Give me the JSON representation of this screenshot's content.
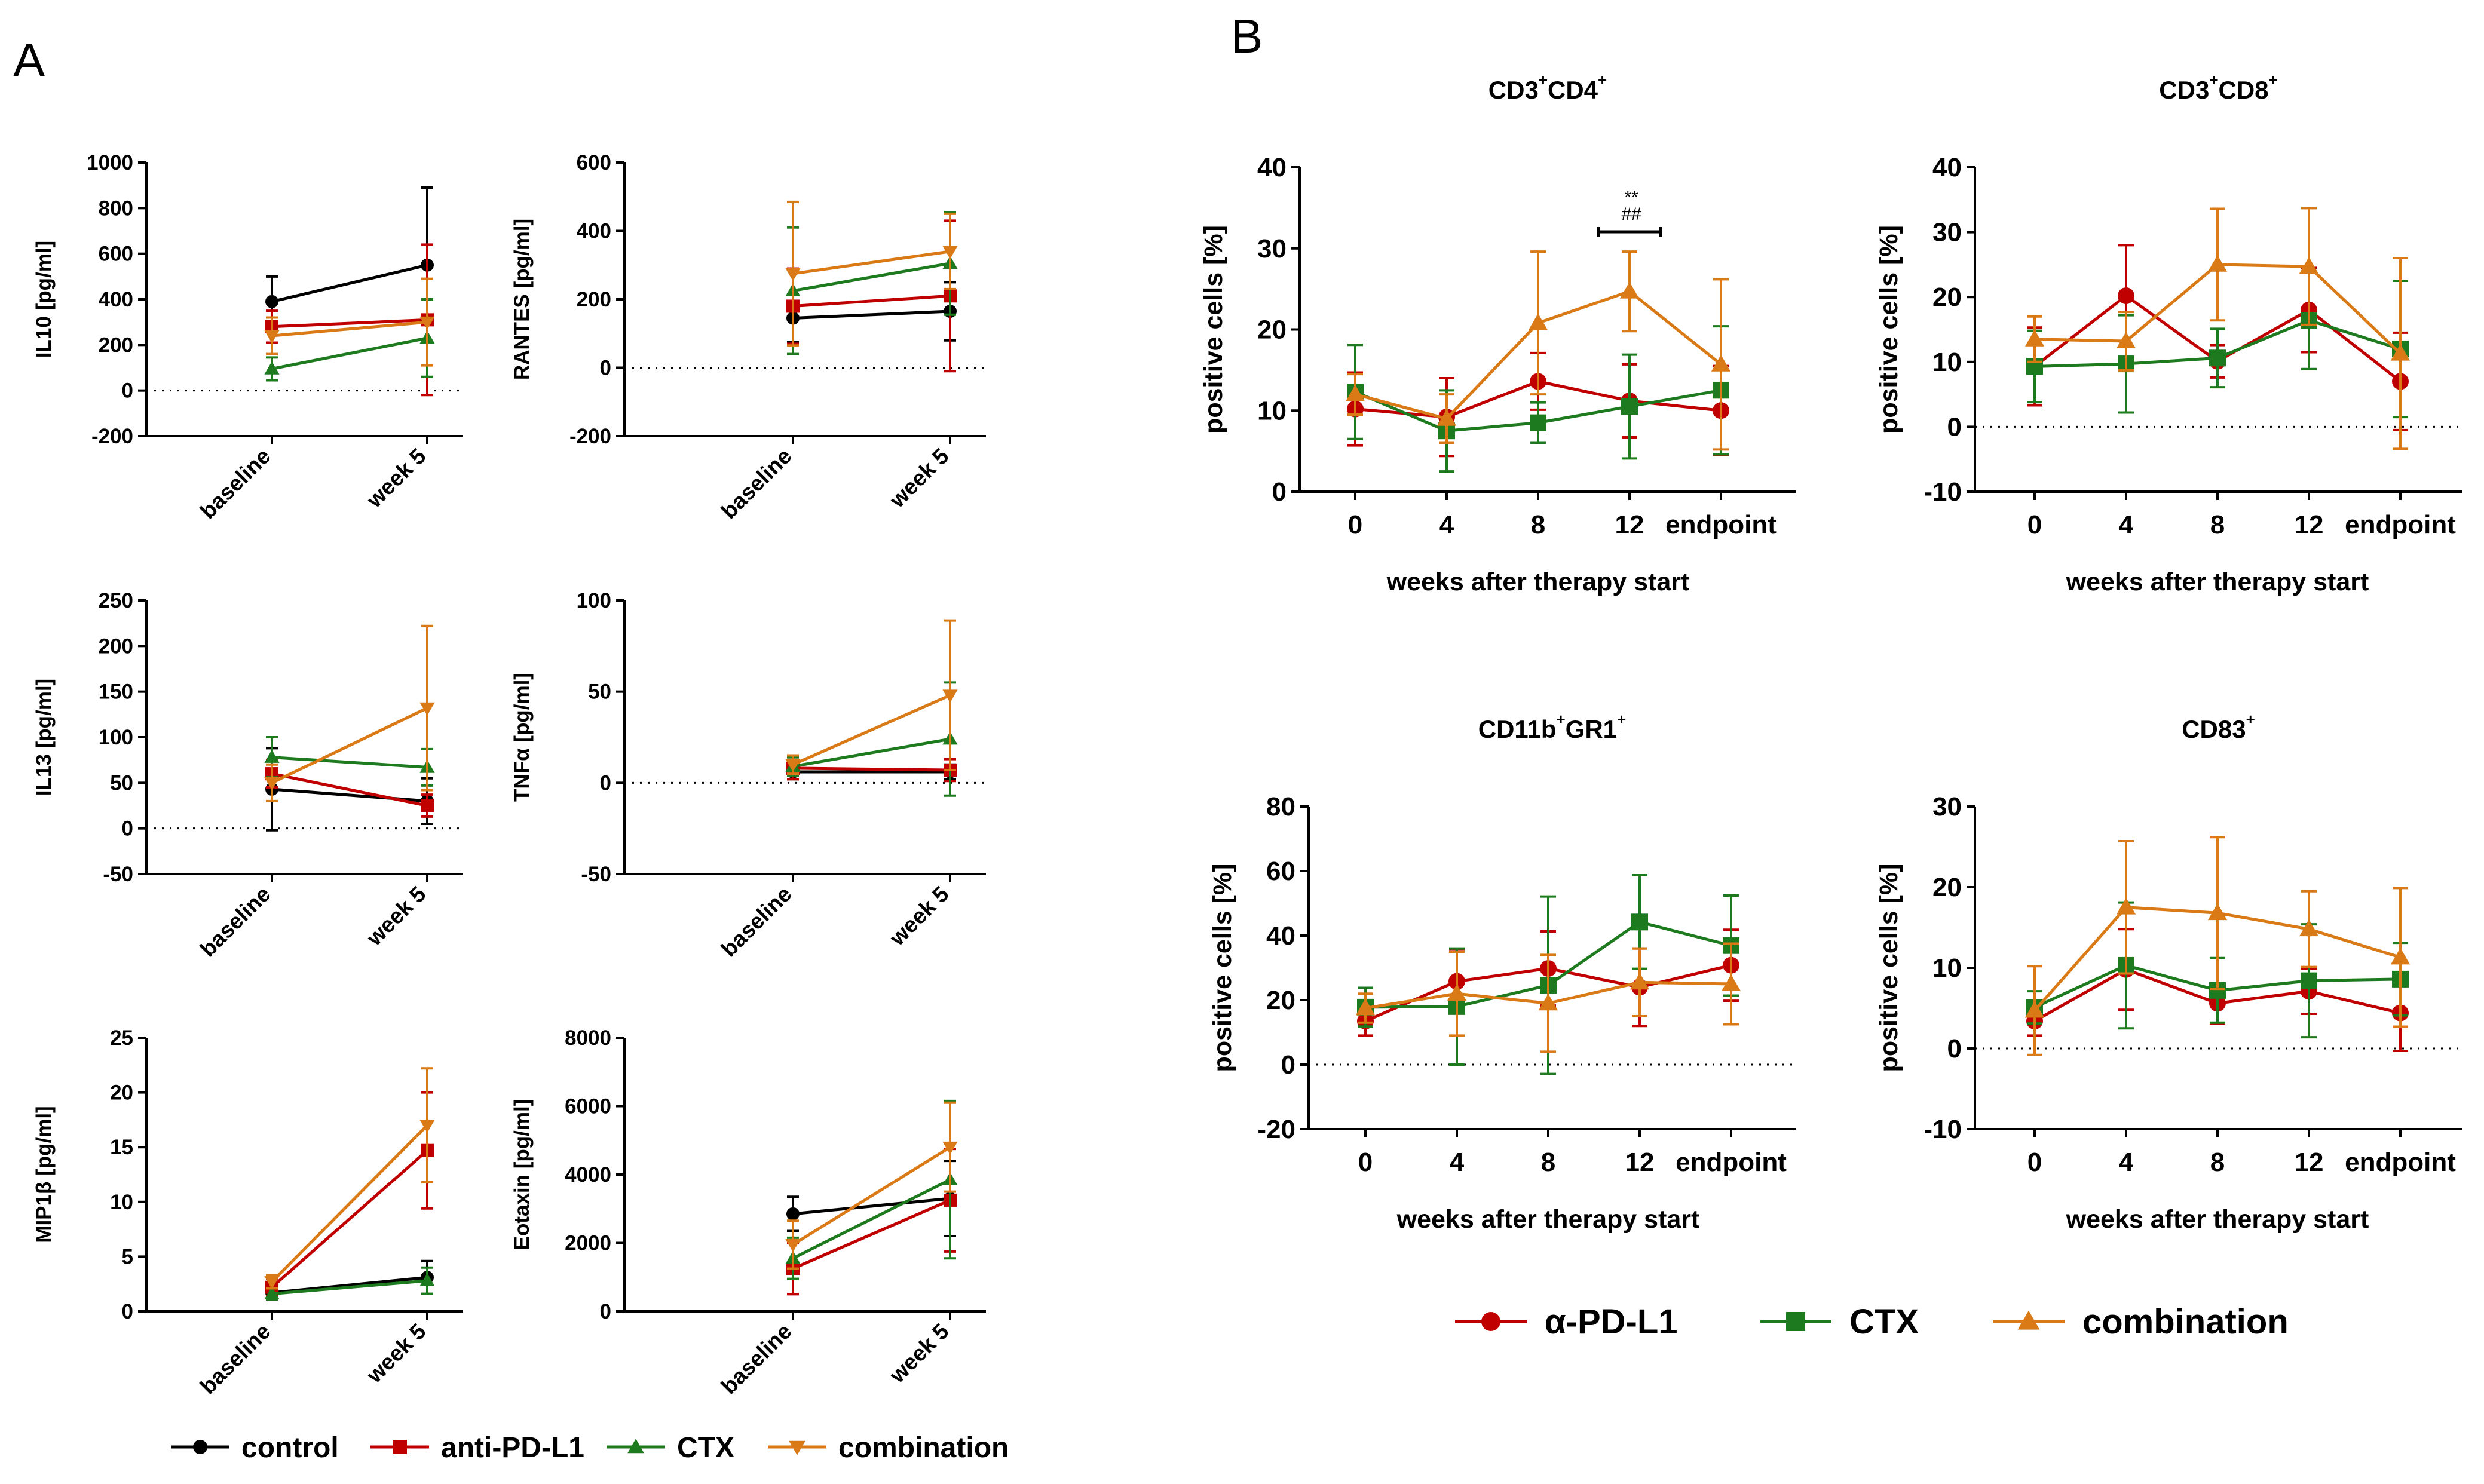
{
  "sections": {
    "a": "A",
    "b": "B"
  },
  "colors": {
    "control": "#000000",
    "pdl1": "#c00000",
    "ctx": "#1e7a1e",
    "comb": "#d97a17"
  },
  "legend_a": [
    {
      "key": "control",
      "label": "control",
      "marker": "circle"
    },
    {
      "key": "pdl1",
      "label": "anti-PD-L1",
      "marker": "square"
    },
    {
      "key": "ctx",
      "label": "CTX",
      "marker": "triangle-up"
    },
    {
      "key": "comb",
      "label": "combination",
      "marker": "triangle-down"
    }
  ],
  "legend_b": [
    {
      "key": "pdl1",
      "label": "α-PD-L1",
      "marker": "circle"
    },
    {
      "key": "ctx",
      "label": "CTX",
      "marker": "square"
    },
    {
      "key": "comb",
      "label": "combination",
      "marker": "triangle-up"
    }
  ],
  "chart_data": [
    {
      "id": "a1",
      "type": "line",
      "ylabel": "IL10 [pg/ml]",
      "categories": [
        "baseline",
        "week 5"
      ],
      "ylim": [
        -200,
        1000
      ],
      "yticks": [
        -200,
        0,
        200,
        400,
        600,
        800,
        1000
      ],
      "ytick_labels": [
        "-200",
        "0",
        "200",
        "400",
        "600",
        "800",
        "1000"
      ],
      "series": [
        {
          "key": "control",
          "name": "control",
          "values": [
            390,
            550
          ],
          "err": [
            110,
            340
          ]
        },
        {
          "key": "pdl1",
          "name": "anti-PD-L1",
          "values": [
            280,
            310
          ],
          "err": [
            70,
            330
          ]
        },
        {
          "key": "ctx",
          "name": "CTX",
          "values": [
            95,
            230
          ],
          "err": [
            50,
            170
          ]
        },
        {
          "key": "comb",
          "name": "combination",
          "values": [
            240,
            300
          ],
          "err": [
            80,
            190
          ]
        }
      ]
    },
    {
      "id": "a2",
      "type": "line",
      "ylabel": "RANTES [pg/ml]",
      "categories": [
        "baseline",
        "week 5"
      ],
      "ylim": [
        -200,
        600
      ],
      "yticks": [
        -200,
        0,
        200,
        400,
        600
      ],
      "ytick_labels": [
        "-200",
        "0",
        "200",
        "400",
        "600"
      ],
      "series": [
        {
          "key": "control",
          "name": "control",
          "values": [
            145,
            165
          ],
          "err": [
            70,
            85
          ]
        },
        {
          "key": "pdl1",
          "name": "anti-PD-L1",
          "values": [
            180,
            210
          ],
          "err": [
            110,
            220
          ]
        },
        {
          "key": "ctx",
          "name": "CTX",
          "values": [
            225,
            305
          ],
          "err": [
            185,
            150
          ]
        },
        {
          "key": "comb",
          "name": "combination",
          "values": [
            275,
            340
          ],
          "err": [
            210,
            110
          ]
        }
      ]
    },
    {
      "id": "a3",
      "type": "line",
      "ylabel": "IL13 [pg/ml]",
      "categories": [
        "baseline",
        "week 5"
      ],
      "ylim": [
        -50,
        250
      ],
      "yticks": [
        -50,
        0,
        50,
        100,
        150,
        200,
        250
      ],
      "ytick_labels": [
        "-50",
        "0",
        "50",
        "100",
        "150",
        "200",
        "250"
      ],
      "series": [
        {
          "key": "control",
          "name": "control",
          "values": [
            43,
            30
          ],
          "err": [
            45,
            25
          ]
        },
        {
          "key": "pdl1",
          "name": "anti-PD-L1",
          "values": [
            60,
            25
          ],
          "err": [
            15,
            12
          ]
        },
        {
          "key": "ctx",
          "name": "CTX",
          "values": [
            78,
            67
          ],
          "err": [
            22,
            20
          ]
        },
        {
          "key": "comb",
          "name": "combination",
          "values": [
            50,
            132
          ],
          "err": [
            20,
            90
          ]
        }
      ]
    },
    {
      "id": "a4",
      "type": "line",
      "ylabel": "TNFα [pg/ml]",
      "categories": [
        "baseline",
        "week 5"
      ],
      "ylim": [
        -50,
        100
      ],
      "yticks": [
        -50,
        0,
        50,
        100
      ],
      "ytick_labels": [
        "-50",
        "0",
        "50",
        "100"
      ],
      "series": [
        {
          "key": "control",
          "name": "control",
          "values": [
            6,
            6
          ],
          "err": [
            4,
            4
          ]
        },
        {
          "key": "pdl1",
          "name": "anti-PD-L1",
          "values": [
            8,
            7
          ],
          "err": [
            6,
            6
          ]
        },
        {
          "key": "ctx",
          "name": "CTX",
          "values": [
            9,
            24
          ],
          "err": [
            5,
            31
          ]
        },
        {
          "key": "comb",
          "name": "combination",
          "values": [
            10,
            48
          ],
          "err": [
            5,
            41
          ]
        }
      ]
    },
    {
      "id": "a5",
      "type": "line",
      "ylabel": "MIP1β [pg/ml]",
      "categories": [
        "baseline",
        "week 5"
      ],
      "ylim": [
        0,
        25
      ],
      "yticks": [
        0,
        5,
        10,
        15,
        20,
        25
      ],
      "ytick_labels": [
        "0",
        "5",
        "10",
        "15",
        "20",
        "25"
      ],
      "series": [
        {
          "key": "control",
          "name": "control",
          "values": [
            1.7,
            3.1
          ],
          "err": [
            0.6,
            1.5
          ]
        },
        {
          "key": "pdl1",
          "name": "anti-PD-L1",
          "values": [
            2.2,
            14.7
          ],
          "err": [
            0.8,
            5.3
          ]
        },
        {
          "key": "ctx",
          "name": "CTX",
          "values": [
            1.6,
            2.8
          ],
          "err": [
            0.5,
            1.2
          ]
        },
        {
          "key": "comb",
          "name": "combination",
          "values": [
            2.7,
            17
          ],
          "err": [
            0.6,
            5.2
          ]
        }
      ]
    },
    {
      "id": "a6",
      "type": "line",
      "ylabel": "Eotaxin [pg/ml]",
      "categories": [
        "baseline",
        "week 5"
      ],
      "ylim": [
        0,
        8000
      ],
      "yticks": [
        0,
        2000,
        4000,
        6000,
        8000
      ],
      "ytick_labels": [
        "0",
        "2000",
        "4000",
        "6000",
        "8000"
      ],
      "series": [
        {
          "key": "control",
          "name": "control",
          "values": [
            2850,
            3300
          ],
          "err": [
            500,
            1100
          ]
        },
        {
          "key": "pdl1",
          "name": "anti-PD-L1",
          "values": [
            1250,
            3250
          ],
          "err": [
            750,
            1500
          ]
        },
        {
          "key": "ctx",
          "name": "CTX",
          "values": [
            1550,
            3850
          ],
          "err": [
            600,
            2300
          ]
        },
        {
          "key": "comb",
          "name": "combination",
          "values": [
            1950,
            4800
          ],
          "err": [
            700,
            1300
          ]
        }
      ]
    },
    {
      "id": "b1",
      "type": "line",
      "title_main": "CD3",
      "title_parts": [
        [
          "CD3",
          "+"
        ],
        [
          "CD4",
          "+"
        ]
      ],
      "ylabel": "positive cells [%]",
      "xlabel": "weeks after therapy start",
      "categories": [
        "0",
        "4",
        "8",
        "12",
        "endpoint"
      ],
      "ylim": [
        0,
        40
      ],
      "yticks": [
        0,
        10,
        20,
        30,
        40
      ],
      "ytick_labels": [
        "0",
        "10",
        "20",
        "30",
        "40"
      ],
      "annotation": {
        "lines": [
          "**",
          "##"
        ],
        "between": [
          3,
          3
        ]
      },
      "series": [
        {
          "key": "pdl1",
          "name": "α-PD-L1",
          "values": [
            10.2,
            9.2,
            13.6,
            11.2,
            10
          ],
          "err": [
            4.5,
            4.8,
            3.5,
            4.5,
            5.5
          ]
        },
        {
          "key": "ctx",
          "name": "CTX",
          "values": [
            12.3,
            7.5,
            8.5,
            10.5,
            12.5
          ],
          "err": [
            5.8,
            5,
            2.5,
            6.4,
            7.9
          ]
        },
        {
          "key": "comb",
          "name": "combination",
          "values": [
            12,
            9,
            20.8,
            24.7,
            15.7
          ],
          "err": [
            2.5,
            3,
            8.8,
            4.9,
            10.5
          ]
        }
      ]
    },
    {
      "id": "b2",
      "type": "line",
      "title_parts": [
        [
          "CD3",
          "+"
        ],
        [
          "CD8",
          "+"
        ]
      ],
      "ylabel": "positive cells [%]",
      "xlabel": "weeks after therapy start",
      "categories": [
        "0",
        "4",
        "8",
        "12",
        "endpoint"
      ],
      "ylim": [
        -10,
        40
      ],
      "yticks": [
        -10,
        0,
        10,
        20,
        30,
        40
      ],
      "ytick_labels": [
        "-10",
        "0",
        "10",
        "20",
        "30",
        "40"
      ],
      "series": [
        {
          "key": "pdl1",
          "name": "α-PD-L1",
          "values": [
            9.3,
            20.2,
            10.1,
            18,
            7
          ],
          "err": [
            6,
            7.8,
            2.5,
            6.5,
            7.5
          ]
        },
        {
          "key": "ctx",
          "name": "CTX",
          "values": [
            9.3,
            9.7,
            10.6,
            16.4,
            12
          ],
          "err": [
            5.5,
            7.5,
            4.5,
            7.5,
            10.5
          ]
        },
        {
          "key": "comb",
          "name": "combination",
          "values": [
            13.5,
            13.2,
            25,
            24.7,
            11.3
          ],
          "err": [
            3.5,
            4.5,
            8.6,
            9,
            14.7
          ]
        }
      ]
    },
    {
      "id": "b3",
      "type": "line",
      "title_parts": [
        [
          "CD11b",
          "+"
        ],
        [
          "GR1",
          "+"
        ]
      ],
      "ylabel": "positive cells [%]",
      "xlabel": "weeks after therapy start",
      "categories": [
        "0",
        "4",
        "8",
        "12",
        "endpoint"
      ],
      "ylim": [
        -20,
        80
      ],
      "yticks": [
        -20,
        0,
        20,
        40,
        60,
        80
      ],
      "ytick_labels": [
        "-20",
        "0",
        "20",
        "40",
        "60",
        "80"
      ],
      "series": [
        {
          "key": "pdl1",
          "name": "α-PD-L1",
          "values": [
            13.5,
            25.8,
            29.8,
            24,
            30.8
          ],
          "err": [
            4.5,
            10,
            11.5,
            12,
            11
          ]
        },
        {
          "key": "ctx",
          "name": "CTX",
          "values": [
            17.8,
            18,
            24.6,
            44.2,
            36.9
          ],
          "err": [
            6,
            18,
            27.5,
            14.5,
            15.5
          ]
        },
        {
          "key": "comb",
          "name": "combination",
          "values": [
            17.5,
            22,
            19,
            25.5,
            25
          ],
          "err": [
            4.5,
            13,
            15,
            10.5,
            12.5
          ]
        }
      ]
    },
    {
      "id": "b4",
      "type": "line",
      "title_parts": [
        [
          "CD83",
          "+"
        ]
      ],
      "ylabel": "positive cells [%]",
      "xlabel": "weeks after therapy start",
      "categories": [
        "0",
        "4",
        "8",
        "12",
        "endpoint"
      ],
      "ylim": [
        -10,
        30
      ],
      "yticks": [
        -10,
        0,
        10,
        20,
        30
      ],
      "ytick_labels": [
        "-10",
        "0",
        "10",
        "20",
        "30"
      ],
      "series": [
        {
          "key": "pdl1",
          "name": "α-PD-L1",
          "values": [
            3.4,
            9.8,
            5.6,
            7.1,
            4.4
          ],
          "err": [
            1.8,
            5,
            2.5,
            2.8,
            4.7
          ]
        },
        {
          "key": "ctx",
          "name": "CTX",
          "values": [
            5.1,
            10.3,
            7.2,
            8.4,
            8.6
          ],
          "err": [
            2,
            7.8,
            4,
            7,
            4.5
          ]
        },
        {
          "key": "comb",
          "name": "combination",
          "values": [
            4.7,
            17.5,
            16.8,
            14.8,
            11.3
          ],
          "err": [
            5.5,
            8.2,
            9.4,
            4.7,
            8.6
          ]
        }
      ]
    }
  ]
}
